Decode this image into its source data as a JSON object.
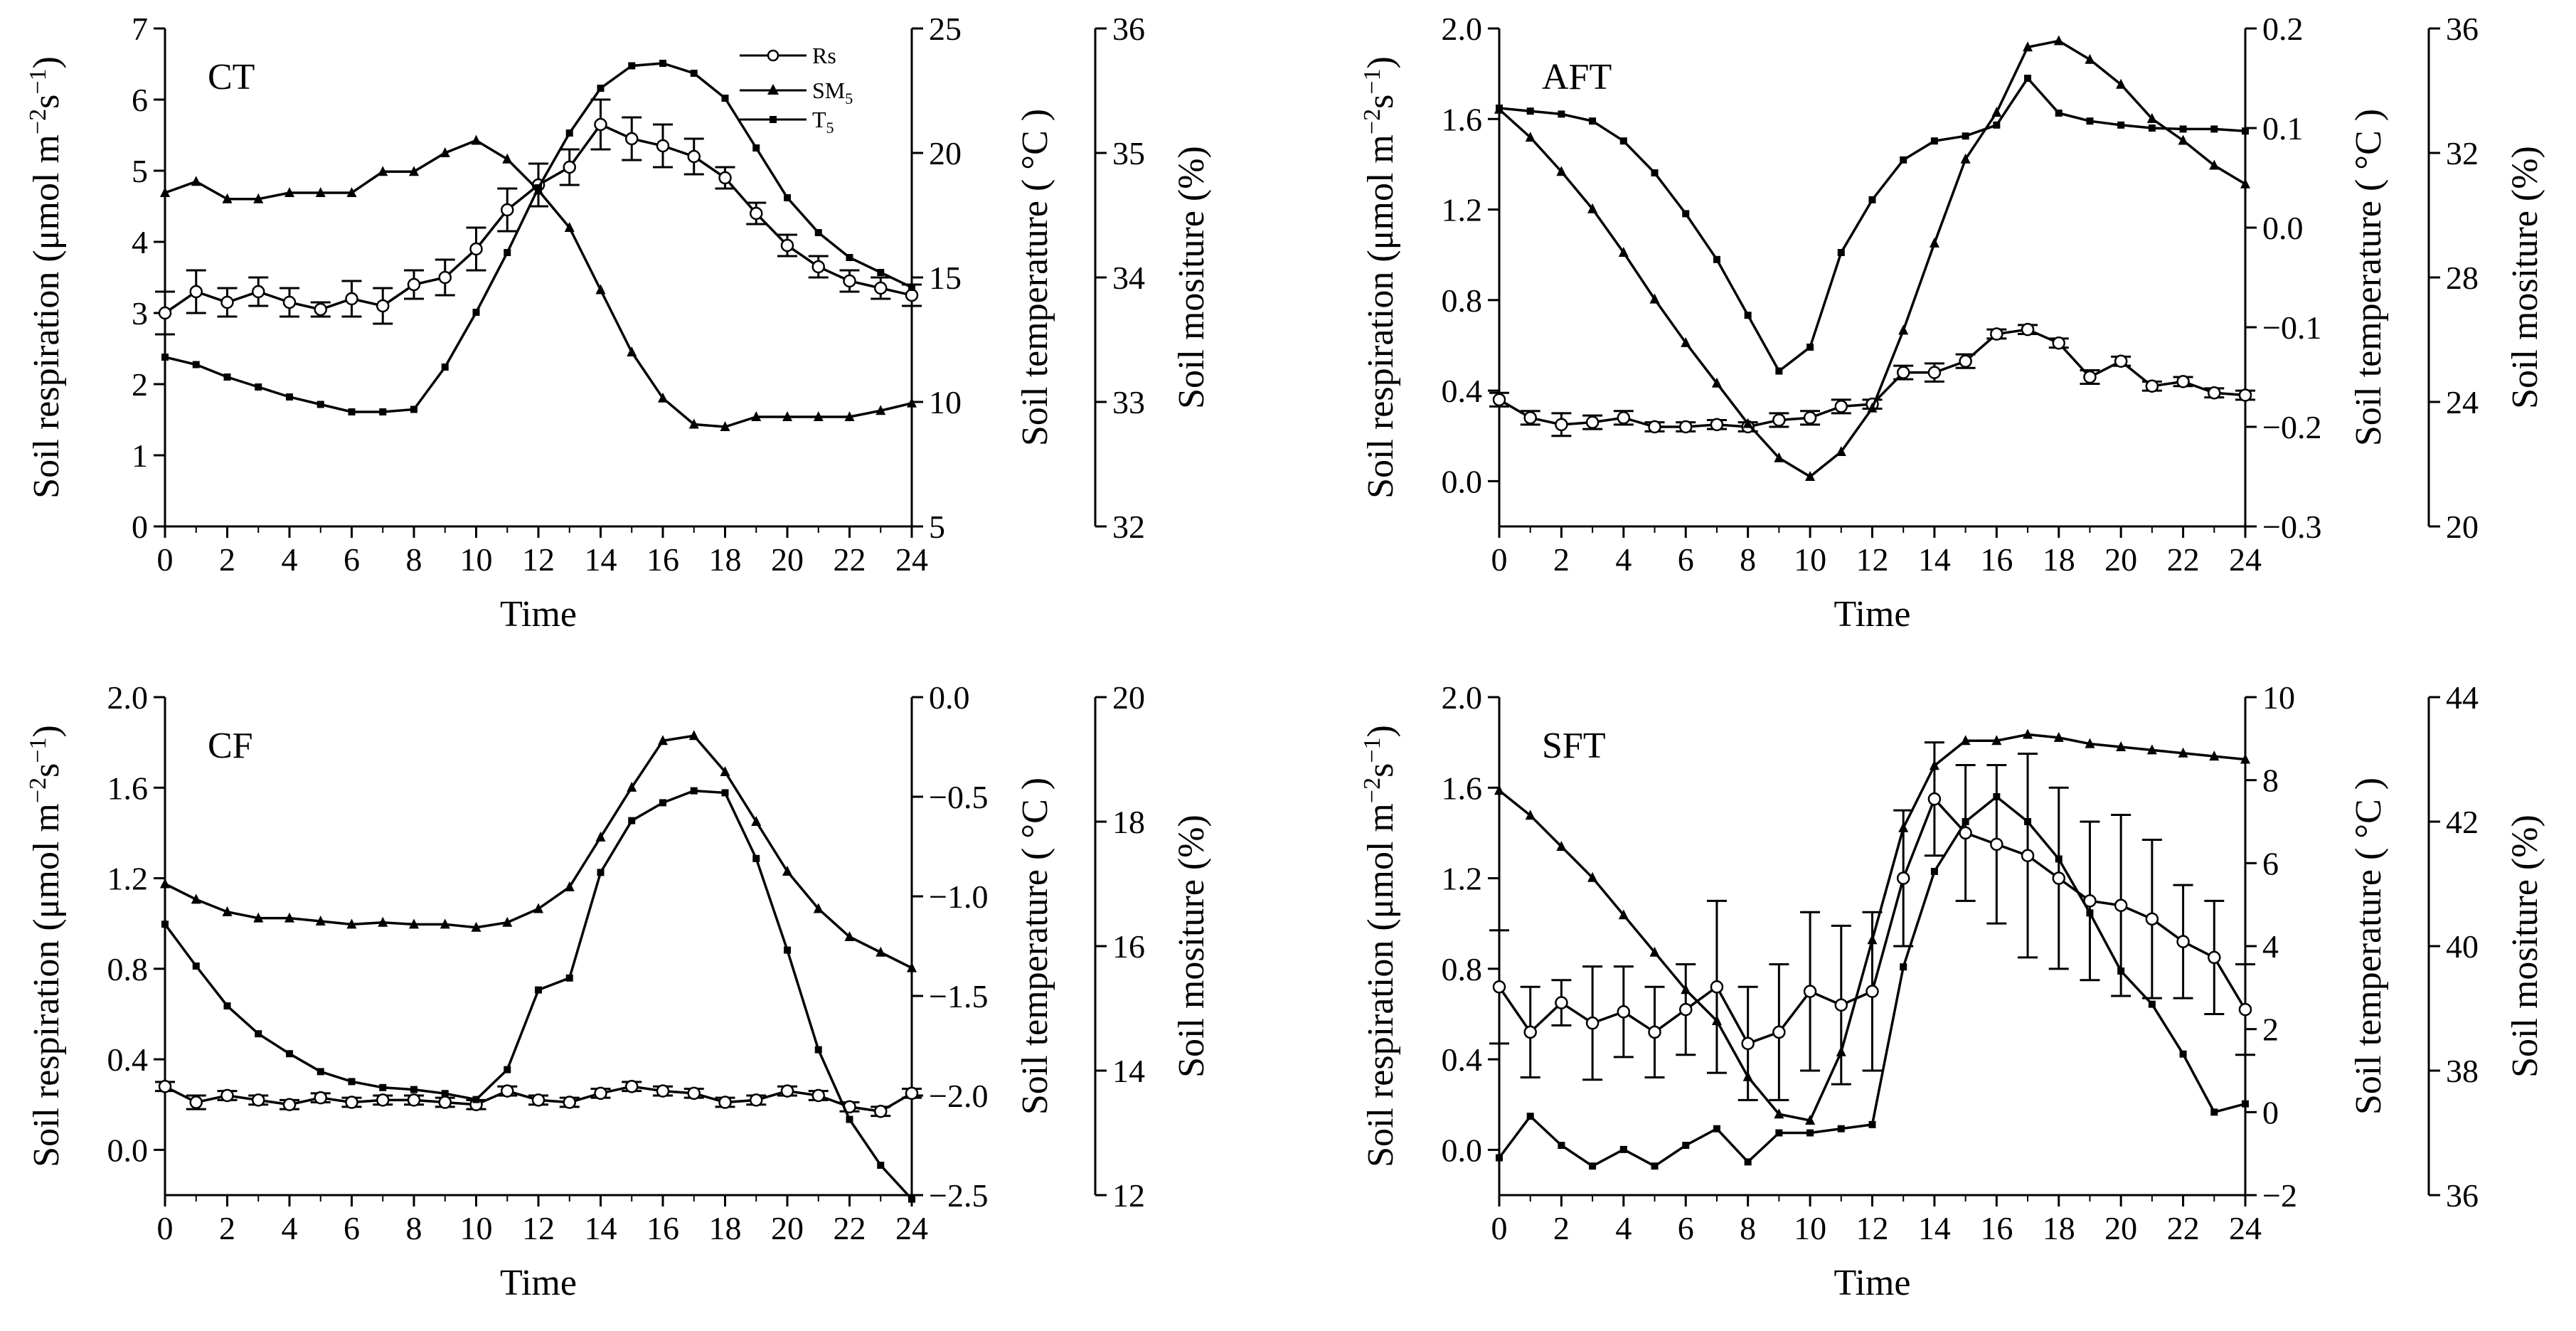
{
  "legend": {
    "rs": "Rs",
    "sm": "SM",
    "sm_sub": "5",
    "t": "T",
    "t_sub": "5"
  },
  "chart_data": [
    {
      "type": "line",
      "title": "CT",
      "xlabel": "Time",
      "ylabel_main": "Soil respiration (",
      "ylabel_unit": "μmol m",
      "ylabel_exp1": "−2",
      "ylabel_s": "s",
      "ylabel_exp2": "−1",
      "ylabel_close": ")",
      "y2label": "Soil temperature ( °C )",
      "y3label": "Soil mositure (%)",
      "x": [
        0,
        1,
        2,
        3,
        4,
        5,
        6,
        7,
        8,
        9,
        10,
        11,
        12,
        13,
        14,
        15,
        16,
        17,
        18,
        19,
        20,
        21,
        22,
        23,
        24
      ],
      "xlim": [
        0,
        24
      ],
      "xticks": [
        "0",
        "2",
        "4",
        "6",
        "8",
        "10",
        "12",
        "14",
        "16",
        "18",
        "20",
        "22",
        "24"
      ],
      "ylim": [
        0,
        7
      ],
      "yticks": [
        "0",
        "1",
        "2",
        "3",
        "4",
        "5",
        "6",
        "7"
      ],
      "y2lim": [
        5,
        25
      ],
      "y2ticks": [
        "5",
        "10",
        "15",
        "20",
        "25"
      ],
      "y3lim": [
        32,
        36
      ],
      "y3ticks": [
        "32",
        "33",
        "34",
        "35",
        "36"
      ],
      "series": [
        {
          "name": "Rs",
          "axis": "y",
          "values": [
            3.0,
            3.3,
            3.15,
            3.3,
            3.15,
            3.05,
            3.2,
            3.1,
            3.4,
            3.5,
            3.9,
            4.45,
            4.8,
            5.05,
            5.65,
            5.45,
            5.35,
            5.2,
            4.9,
            4.4,
            3.95,
            3.65,
            3.45,
            3.35,
            3.25
          ],
          "err": [
            0.3,
            0.3,
            0.2,
            0.2,
            0.2,
            0.1,
            0.25,
            0.25,
            0.2,
            0.25,
            0.3,
            0.3,
            0.3,
            0.25,
            0.35,
            0.3,
            0.3,
            0.25,
            0.15,
            0.15,
            0.15,
            0.15,
            0.15,
            0.15,
            0.15
          ]
        },
        {
          "name": "SM5",
          "axis": "y3",
          "values": [
            34.68,
            34.77,
            34.63,
            34.63,
            34.68,
            34.68,
            34.68,
            34.85,
            34.85,
            35.0,
            35.1,
            34.95,
            34.7,
            34.4,
            33.9,
            33.4,
            33.03,
            32.82,
            32.8,
            32.88,
            32.88,
            32.88,
            32.88,
            32.93,
            32.99
          ]
        },
        {
          "name": "T5",
          "axis": "y2",
          "values": [
            11.8,
            11.5,
            11.0,
            10.6,
            10.2,
            9.9,
            9.6,
            9.6,
            9.7,
            11.4,
            13.6,
            16.0,
            18.6,
            20.8,
            22.6,
            23.5,
            23.6,
            23.2,
            22.2,
            20.2,
            18.2,
            16.8,
            15.8,
            15.2,
            14.6
          ]
        }
      ]
    },
    {
      "type": "line",
      "title": "AFT",
      "xlabel": "Time",
      "ylabel_main": "Soil respiration (",
      "ylabel_unit": "μmol m",
      "ylabel_exp1": "−2",
      "ylabel_s": "s",
      "ylabel_exp2": "−1",
      "ylabel_close": ")",
      "y2label": "Soil temperature ( °C )",
      "y3label": "Soil mositure (%)",
      "x": [
        0,
        1,
        2,
        3,
        4,
        5,
        6,
        7,
        8,
        9,
        10,
        11,
        12,
        13,
        14,
        15,
        16,
        17,
        18,
        19,
        20,
        21,
        22,
        23,
        24
      ],
      "xlim": [
        0,
        24
      ],
      "xticks": [
        "0",
        "2",
        "4",
        "6",
        "8",
        "10",
        "12",
        "14",
        "16",
        "18",
        "20",
        "22",
        "24"
      ],
      "ylim": [
        -0.2,
        2.0
      ],
      "yticks": [
        "0.0",
        "0.4",
        "0.8",
        "1.2",
        "1.6",
        "2.0"
      ],
      "y2lim": [
        -0.3,
        0.2
      ],
      "y2ticks": [
        "−0.3",
        "−0.2",
        "−0.1",
        "0.0",
        "0.1",
        "0.2"
      ],
      "y3lim": [
        20,
        36
      ],
      "y3ticks": [
        "20",
        "24",
        "28",
        "32",
        "36"
      ],
      "series": [
        {
          "name": "Rs",
          "axis": "y",
          "values": [
            0.36,
            0.28,
            0.25,
            0.26,
            0.28,
            0.24,
            0.24,
            0.25,
            0.24,
            0.27,
            0.28,
            0.33,
            0.34,
            0.48,
            0.48,
            0.53,
            0.65,
            0.67,
            0.61,
            0.46,
            0.53,
            0.42,
            0.44,
            0.39,
            0.38
          ],
          "err": [
            0.03,
            0.03,
            0.05,
            0.03,
            0.03,
            0.02,
            0.02,
            0.02,
            0.02,
            0.03,
            0.03,
            0.03,
            0.02,
            0.03,
            0.04,
            0.03,
            0.02,
            0.02,
            0.02,
            0.03,
            0.02,
            0.02,
            0.02,
            0.02,
            0.02
          ]
        },
        {
          "name": "SM5",
          "axis": "y3",
          "values": [
            33.4,
            32.5,
            31.4,
            30.2,
            28.8,
            27.3,
            25.9,
            24.6,
            23.3,
            22.2,
            21.6,
            22.4,
            23.8,
            26.3,
            29.1,
            31.8,
            33.3,
            35.4,
            35.6,
            35.0,
            34.2,
            33.1,
            32.4,
            31.6,
            31.0
          ]
        },
        {
          "name": "T5",
          "axis": "y2",
          "values": [
            0.12,
            0.117,
            0.114,
            0.107,
            0.087,
            0.055,
            0.014,
            -0.032,
            -0.088,
            -0.144,
            -0.12,
            -0.025,
            0.028,
            0.068,
            0.087,
            0.092,
            0.103,
            0.15,
            0.115,
            0.107,
            0.103,
            0.1,
            0.099,
            0.099,
            0.097
          ]
        }
      ]
    },
    {
      "type": "line",
      "title": "CF",
      "xlabel": "Time",
      "ylabel_main": "Soil respiration (",
      "ylabel_unit": "μmol m",
      "ylabel_exp1": "−2",
      "ylabel_s": "s",
      "ylabel_exp2": "−1",
      "ylabel_close": ")",
      "y2label": "Soil temperature ( °C )",
      "y3label": "Soil mositure (%)",
      "x": [
        0,
        1,
        2,
        3,
        4,
        5,
        6,
        7,
        8,
        9,
        10,
        11,
        12,
        13,
        14,
        15,
        16,
        17,
        18,
        19,
        20,
        21,
        22,
        23,
        24
      ],
      "xlim": [
        0,
        24
      ],
      "xticks": [
        "0",
        "2",
        "4",
        "6",
        "8",
        "10",
        "12",
        "14",
        "16",
        "18",
        "20",
        "22",
        "24"
      ],
      "ylim": [
        -0.2,
        2.0
      ],
      "yticks": [
        "0.0",
        "0.4",
        "0.8",
        "1.2",
        "1.6",
        "2.0"
      ],
      "y2lim": [
        -2.5,
        0.0
      ],
      "y2ticks": [
        "−2.5",
        "−2.0",
        "−1.5",
        "−1.0",
        "−0.5",
        "0.0"
      ],
      "y3lim": [
        12,
        20
      ],
      "y3ticks": [
        "12",
        "14",
        "16",
        "18",
        "20"
      ],
      "series": [
        {
          "name": "Rs",
          "axis": "y",
          "values": [
            0.28,
            0.21,
            0.24,
            0.22,
            0.2,
            0.23,
            0.21,
            0.22,
            0.22,
            0.21,
            0.2,
            0.26,
            0.22,
            0.21,
            0.25,
            0.28,
            0.26,
            0.25,
            0.21,
            0.22,
            0.26,
            0.24,
            0.19,
            0.17,
            0.25
          ],
          "err": [
            0.02,
            0.03,
            0.02,
            0.02,
            0.02,
            0.02,
            0.02,
            0.02,
            0.02,
            0.02,
            0.02,
            0.02,
            0.02,
            0.02,
            0.02,
            0.02,
            0.02,
            0.02,
            0.02,
            0.02,
            0.02,
            0.02,
            0.02,
            0.02,
            0.02
          ]
        },
        {
          "name": "SM5",
          "axis": "y3",
          "values": [
            17.0,
            16.75,
            16.55,
            16.45,
            16.45,
            16.4,
            16.35,
            16.38,
            16.35,
            16.35,
            16.3,
            16.38,
            16.6,
            16.95,
            17.75,
            18.55,
            19.3,
            19.38,
            18.8,
            18.0,
            17.2,
            16.6,
            16.15,
            15.9,
            15.65
          ]
        },
        {
          "name": "T5",
          "axis": "y2",
          "values": [
            -1.14,
            -1.35,
            -1.55,
            -1.69,
            -1.79,
            -1.88,
            -1.93,
            -1.96,
            -1.97,
            -1.99,
            -2.02,
            -1.87,
            -1.47,
            -1.41,
            -0.88,
            -0.62,
            -0.53,
            -0.47,
            -0.48,
            -0.81,
            -1.27,
            -1.77,
            -2.12,
            -2.35,
            -2.52
          ]
        }
      ]
    },
    {
      "type": "line",
      "title": "SFT",
      "xlabel": "Time",
      "ylabel_main": "Soil respiration (",
      "ylabel_unit": "μmol m",
      "ylabel_exp1": "−2",
      "ylabel_s": "s",
      "ylabel_exp2": "−1",
      "ylabel_close": ")",
      "y2label": "Soil temperature ( °C )",
      "y3label": "Soil mositure (%)",
      "x": [
        0,
        1,
        2,
        3,
        4,
        5,
        6,
        7,
        8,
        9,
        10,
        11,
        12,
        13,
        14,
        15,
        16,
        17,
        18,
        19,
        20,
        21,
        22,
        23,
        24
      ],
      "xlim": [
        0,
        24
      ],
      "xticks": [
        "0",
        "2",
        "4",
        "6",
        "8",
        "10",
        "12",
        "14",
        "16",
        "18",
        "20",
        "22",
        "24"
      ],
      "ylim": [
        -0.2,
        2.0
      ],
      "yticks": [
        "0.0",
        "0.4",
        "0.8",
        "1.2",
        "1.6",
        "2.0"
      ],
      "y2lim": [
        -2,
        10
      ],
      "y2ticks": [
        "−2",
        "0",
        "2",
        "4",
        "6",
        "8",
        "10"
      ],
      "y3lim": [
        36,
        44
      ],
      "y3ticks": [
        "36",
        "38",
        "40",
        "42",
        "44"
      ],
      "series": [
        {
          "name": "Rs",
          "axis": "y",
          "values": [
            0.72,
            0.52,
            0.65,
            0.56,
            0.61,
            0.52,
            0.62,
            0.72,
            0.47,
            0.52,
            0.7,
            0.64,
            0.7,
            1.2,
            1.55,
            1.4,
            1.35,
            1.3,
            1.2,
            1.1,
            1.08,
            1.02,
            0.92,
            0.85,
            0.62
          ],
          "err": [
            0.25,
            0.2,
            0.1,
            0.25,
            0.2,
            0.2,
            0.2,
            0.38,
            0.25,
            0.3,
            0.35,
            0.35,
            0.35,
            0.3,
            0.25,
            0.3,
            0.35,
            0.45,
            0.4,
            0.35,
            0.4,
            0.35,
            0.25,
            0.25,
            0.2
          ]
        },
        {
          "name": "SM5",
          "axis": "y3",
          "values": [
            42.5,
            42.1,
            41.6,
            41.1,
            40.5,
            39.9,
            39.3,
            38.8,
            37.9,
            37.3,
            37.2,
            38.3,
            40.1,
            41.9,
            42.9,
            43.3,
            43.3,
            43.4,
            43.35,
            43.25,
            43.2,
            43.15,
            43.1,
            43.05,
            43.0
          ]
        },
        {
          "name": "T5",
          "axis": "y2",
          "values": [
            -1.1,
            -0.1,
            -0.8,
            -1.3,
            -0.9,
            -1.3,
            -0.8,
            -0.4,
            -1.2,
            -0.5,
            -0.5,
            -0.4,
            -0.3,
            3.5,
            5.8,
            7.0,
            7.6,
            7.0,
            6.1,
            4.8,
            3.4,
            2.6,
            1.4,
            0.0,
            0.2
          ]
        }
      ]
    }
  ]
}
